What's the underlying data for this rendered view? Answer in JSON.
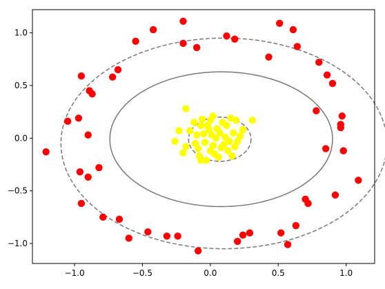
{
  "chart_data": {
    "type": "scatter",
    "title": "",
    "xlabel": "",
    "ylabel": "",
    "xlim": [
      -1.31,
      1.21
    ],
    "ylim": [
      -1.19,
      1.22
    ],
    "grid": false,
    "x_ticks": [
      -1.0,
      -0.5,
      0.0,
      0.5,
      1.0
    ],
    "y_ticks": [
      -1.0,
      -0.5,
      0.0,
      0.5,
      1.0
    ],
    "x_tick_labels": [
      "−1.0",
      "−0.5",
      "0.0",
      "0.5",
      "1.0"
    ],
    "y_tick_labels": [
      "−1.0",
      "−0.5",
      "0.0",
      "0.5",
      "1.0"
    ],
    "colors": {
      "outer": "#ff0000",
      "inner": "#ffff00",
      "contour": "#777777"
    },
    "series": [
      {
        "color": "#ff0000",
        "points": [
          [
            -1.21,
            -0.13
          ],
          [
            -1.05,
            0.16
          ],
          [
            -0.97,
            0.19
          ],
          [
            -0.95,
            0.59
          ],
          [
            -0.9,
            0.03
          ],
          [
            -0.89,
            0.45
          ],
          [
            -0.87,
            0.42
          ],
          [
            -0.96,
            -0.32
          ],
          [
            -0.9,
            -0.37
          ],
          [
            -0.95,
            -0.62
          ],
          [
            -0.82,
            -0.28
          ],
          [
            -0.79,
            -0.75
          ],
          [
            -0.72,
            0.58
          ],
          [
            -0.68,
            0.65
          ],
          [
            -0.67,
            -0.77
          ],
          [
            -0.6,
            -0.95
          ],
          [
            -0.55,
            0.92
          ],
          [
            -0.46,
            -0.89
          ],
          [
            -0.42,
            1.03
          ],
          [
            -0.32,
            -0.93
          ],
          [
            -0.24,
            -0.93
          ],
          [
            -0.2,
            1.11
          ],
          [
            -0.2,
            0.9
          ],
          [
            -0.1,
            0.86
          ],
          [
            -0.09,
            -1.07
          ],
          [
            0.12,
            0.97
          ],
          [
            0.18,
            0.94
          ],
          [
            0.2,
            -0.98
          ],
          [
            0.24,
            -0.92
          ],
          [
            0.29,
            -0.9
          ],
          [
            0.43,
            0.77
          ],
          [
            0.51,
            1.09
          ],
          [
            0.52,
            -0.9
          ],
          [
            0.57,
            -1.01
          ],
          [
            0.61,
            1.03
          ],
          [
            0.63,
            -0.83
          ],
          [
            0.64,
            0.87
          ],
          [
            0.7,
            -0.58
          ],
          [
            0.72,
            -0.62
          ],
          [
            0.78,
            0.26
          ],
          [
            0.8,
            0.72
          ],
          [
            0.85,
            -0.1
          ],
          [
            0.86,
            0.6
          ],
          [
            0.9,
            0.52
          ],
          [
            0.92,
            -0.54
          ],
          [
            0.96,
            0.13
          ],
          [
            0.96,
            0.1
          ],
          [
            0.97,
            0.21
          ],
          [
            0.98,
            -0.12
          ],
          [
            1.09,
            -0.4
          ]
        ]
      },
      {
        "color": "#ffff00",
        "points": [
          [
            -0.18,
            0.28
          ],
          [
            -0.26,
            -0.03
          ],
          [
            -0.23,
            0.07
          ],
          [
            -0.2,
            -0.14
          ],
          [
            -0.18,
            -0.08
          ],
          [
            -0.15,
            0.07
          ],
          [
            -0.12,
            0.15
          ],
          [
            -0.11,
            -0.05
          ],
          [
            -0.1,
            0.03
          ],
          [
            -0.09,
            -0.1
          ],
          [
            -0.08,
            -0.17
          ],
          [
            -0.07,
            0.12
          ],
          [
            -0.07,
            -0.21
          ],
          [
            -0.06,
            0.18
          ],
          [
            -0.05,
            0.04
          ],
          [
            -0.04,
            -0.04
          ],
          [
            -0.03,
            -0.21
          ],
          [
            -0.02,
            0.12
          ],
          [
            -0.01,
            0.08
          ],
          [
            0.0,
            0.17
          ],
          [
            0.0,
            -0.12
          ],
          [
            0.01,
            0.03
          ],
          [
            0.02,
            -0.07
          ],
          [
            0.02,
            0.21
          ],
          [
            0.03,
            -0.15
          ],
          [
            0.04,
            0.0
          ],
          [
            0.05,
            0.09
          ],
          [
            0.06,
            -0.18
          ],
          [
            0.07,
            0.05
          ],
          [
            0.08,
            -0.09
          ],
          [
            0.09,
            0.15
          ],
          [
            0.1,
            -0.06
          ],
          [
            0.11,
            0.01
          ],
          [
            0.12,
            0.12
          ],
          [
            0.13,
            -0.12
          ],
          [
            0.14,
            -0.03
          ],
          [
            0.15,
            0.19
          ],
          [
            0.16,
            -0.17
          ],
          [
            0.17,
            0.05
          ],
          [
            0.18,
            -0.08
          ],
          [
            0.19,
            0.17
          ],
          [
            0.2,
            -0.03
          ],
          [
            0.22,
            0.02
          ],
          [
            0.24,
            0.08
          ],
          [
            0.31,
            0.17
          ]
        ]
      }
    ],
    "contours": [
      {
        "style": "solid",
        "cx": 0.08,
        "cy": -0.01,
        "rx": 0.82,
        "ry": 0.64
      },
      {
        "style": "dashed",
        "cx": 0.1,
        "cy": -0.05,
        "rx": 1.2,
        "ry": 1.0
      },
      {
        "style": "dashed",
        "cx": 0.07,
        "cy": -0.01,
        "rx": 0.23,
        "ry": 0.21
      }
    ]
  }
}
